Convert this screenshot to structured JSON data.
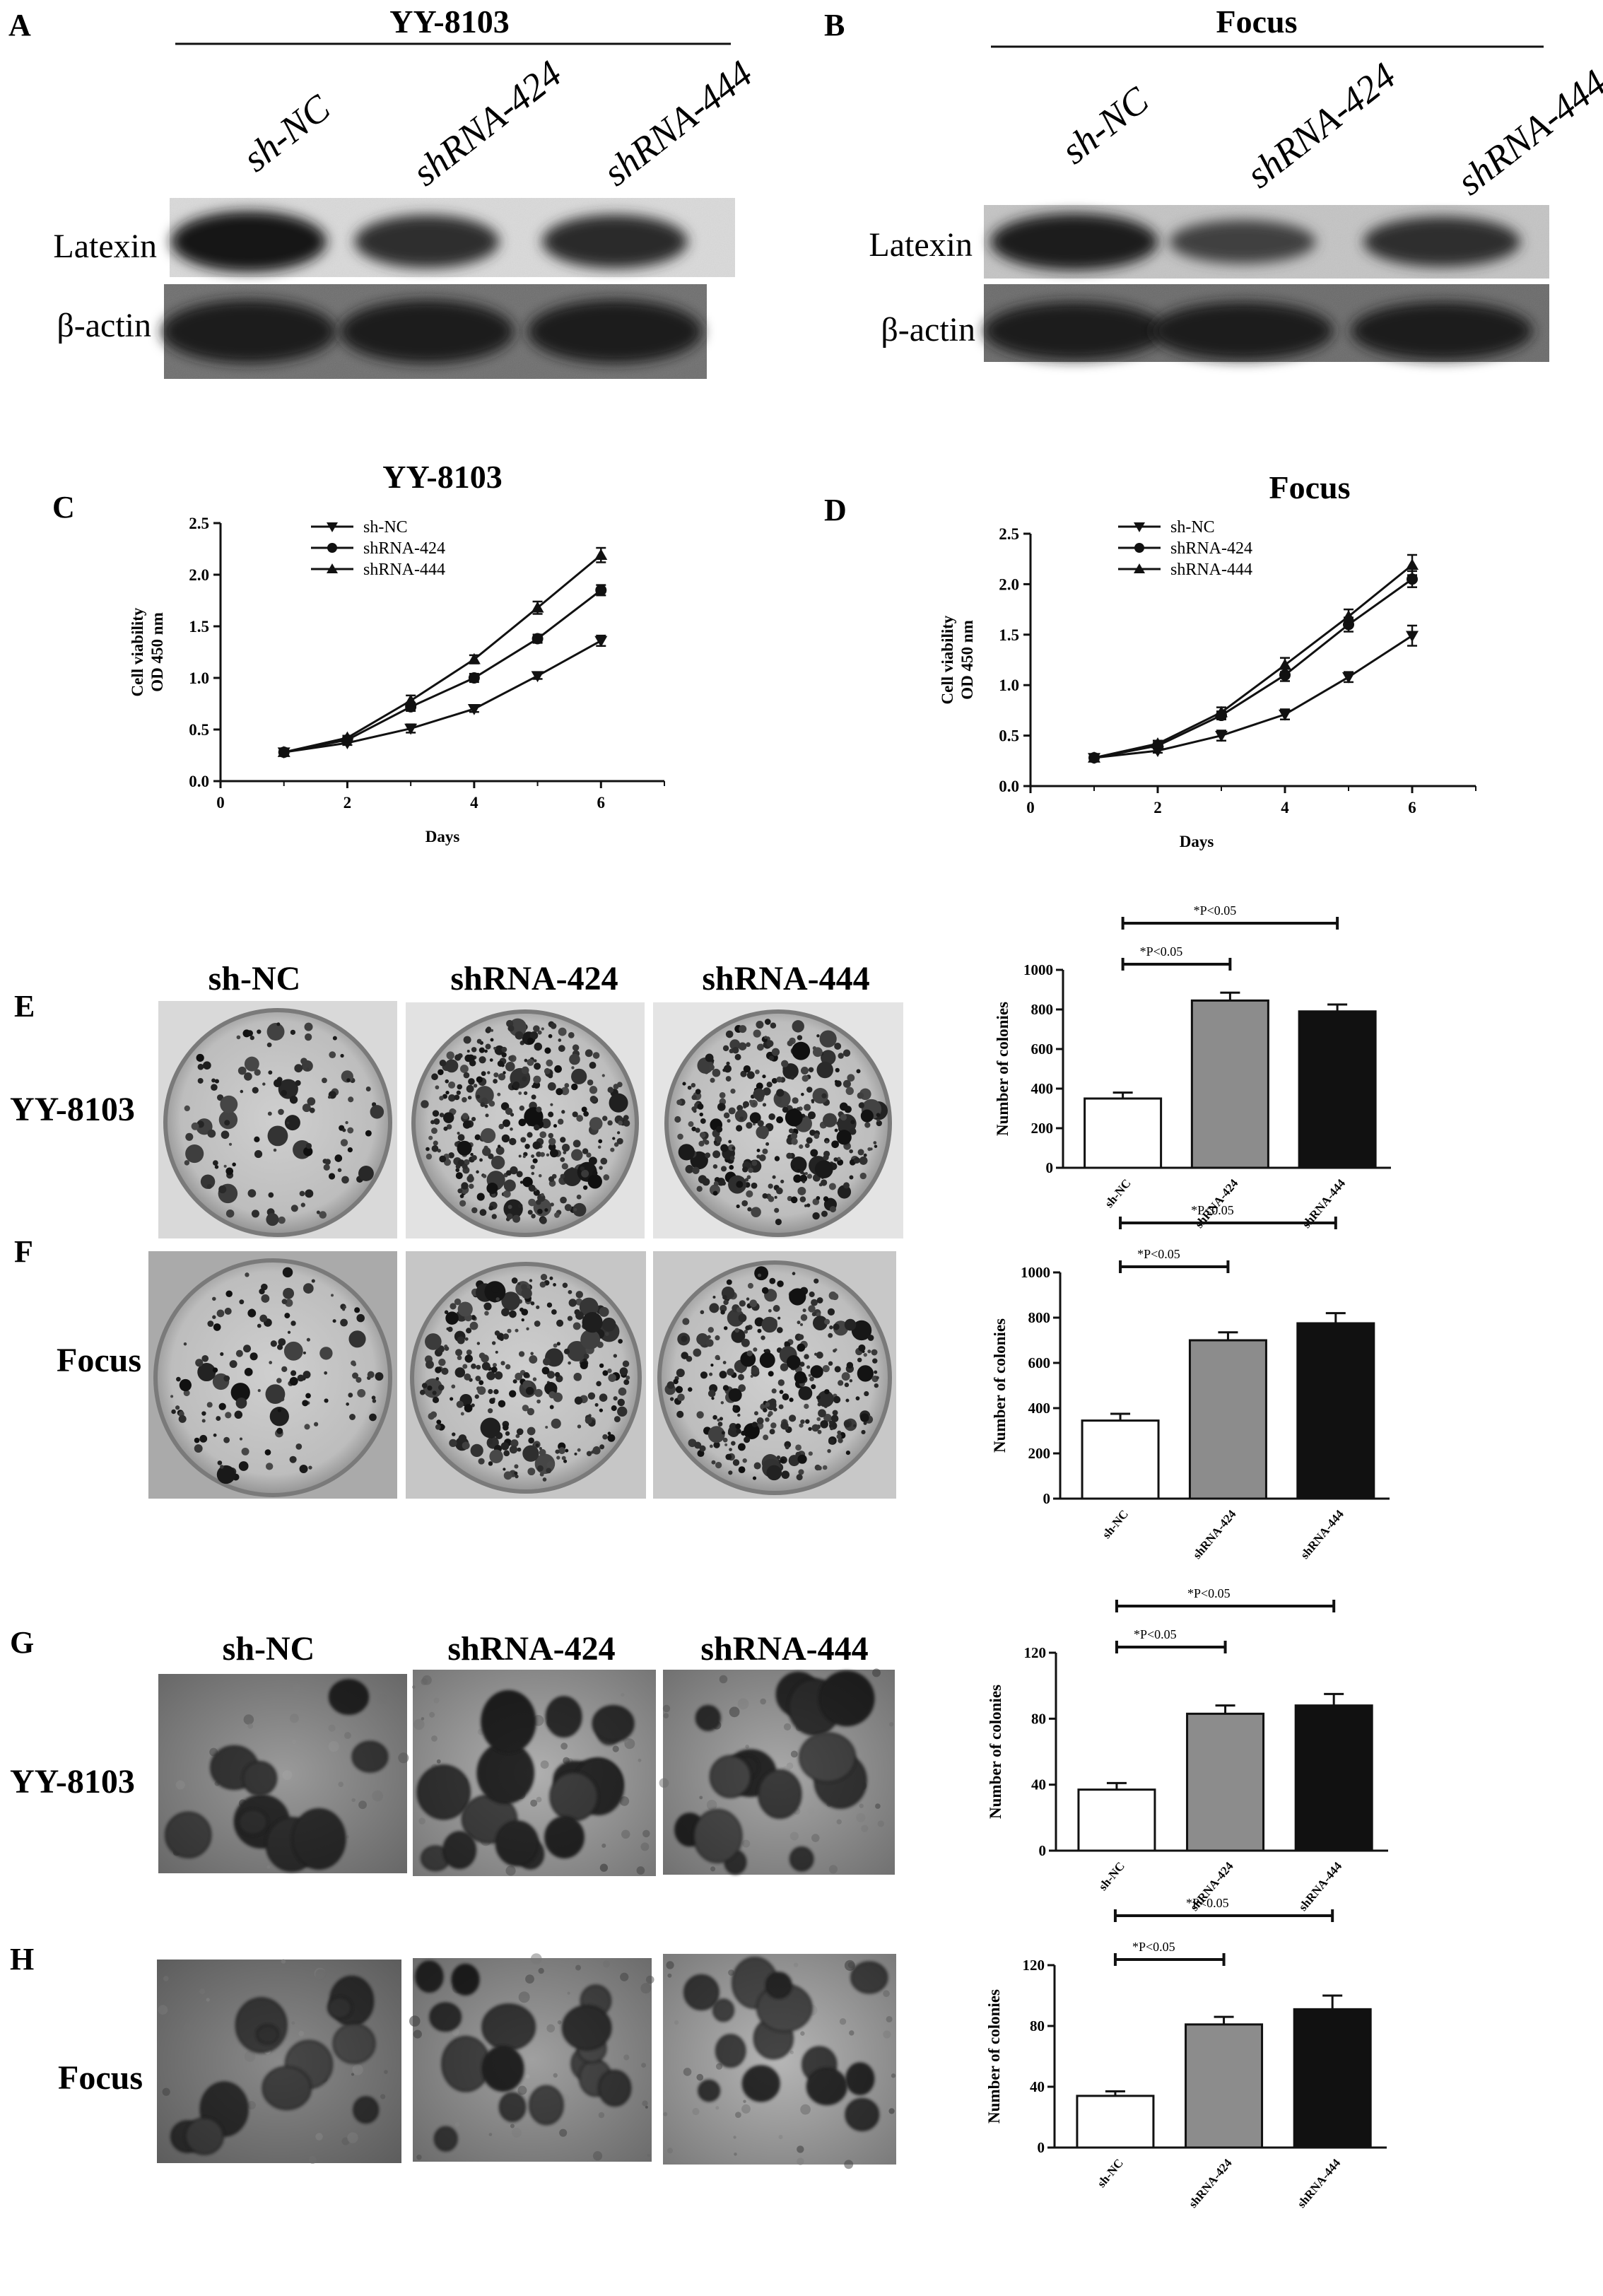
{
  "colors": {
    "background": "#ffffff",
    "ink": "#111111",
    "bar_sh_nc": "#ffffff",
    "bar_shrna_424": "#8c8c8c",
    "bar_shrna_444": "#111111"
  },
  "panels": {
    "A": {
      "letter": "A",
      "title": "YY-8103",
      "lanes": [
        "sh-NC",
        "shRNA-424",
        "shRNA-444"
      ],
      "rows": [
        "Latexin",
        "β-actin"
      ],
      "band_intensity": {
        "Latexin": [
          1.0,
          0.72,
          0.74
        ],
        "β-actin": [
          0.95,
          0.95,
          0.95
        ]
      }
    },
    "B": {
      "letter": "B",
      "title": "Focus",
      "lanes": [
        "sh-NC",
        "shRNA-424",
        "shRNA-444"
      ],
      "rows": [
        "Latexin",
        "β-actin"
      ],
      "band_intensity": {
        "Latexin": [
          0.95,
          0.45,
          0.7
        ],
        "β-actin": [
          0.95,
          0.95,
          0.95
        ]
      }
    },
    "C": {
      "letter": "C"
    },
    "D": {
      "letter": "D"
    },
    "E": {
      "letter": "E",
      "row_label": "YY-8103",
      "headers": [
        "sh-NC",
        "shRNA-424",
        "shRNA-444"
      ],
      "image_description": "colony formation plate images"
    },
    "F": {
      "letter": "F",
      "row_label": "Focus"
    },
    "G": {
      "letter": "G",
      "row_label": "YY-8103",
      "headers": [
        "sh-NC",
        "shRNA-424",
        "shRNA-444"
      ],
      "image_description": "soft agar colony micrographs"
    },
    "H": {
      "letter": "H",
      "row_label": "Focus"
    }
  },
  "chart_data": [
    {
      "panel": "C",
      "type": "line",
      "title": "YY-8103",
      "xlabel": "Days",
      "ylabel": "Cell viability\nOD 450 nm",
      "x": [
        1,
        2,
        3,
        4,
        5,
        6
      ],
      "xlim": [
        0,
        7
      ],
      "ylim": [
        0,
        2.5
      ],
      "xticks": [
        "0",
        "2",
        "4",
        "6"
      ],
      "yticks": [
        "0.0",
        "0.5",
        "1.0",
        "1.5",
        "2.0",
        "2.5"
      ],
      "legend_position": "top-left",
      "series": [
        {
          "name": "sh-NC",
          "marker": "triangle-down",
          "values": [
            0.28,
            0.37,
            0.51,
            0.7,
            1.02,
            1.36
          ],
          "errors": [
            0.02,
            0.02,
            0.04,
            0.03,
            0.03,
            0.05
          ]
        },
        {
          "name": "shRNA-424",
          "marker": "circle",
          "values": [
            0.28,
            0.4,
            0.72,
            1.0,
            1.38,
            1.85
          ],
          "errors": [
            0.02,
            0.02,
            0.04,
            0.04,
            0.04,
            0.05
          ]
        },
        {
          "name": "shRNA-444",
          "marker": "triangle-up",
          "values": [
            0.28,
            0.42,
            0.78,
            1.18,
            1.68,
            2.19
          ],
          "errors": [
            0.02,
            0.02,
            0.05,
            0.04,
            0.06,
            0.07
          ]
        }
      ]
    },
    {
      "panel": "D",
      "type": "line",
      "title": "Focus",
      "xlabel": "Days",
      "ylabel": "Cell viability\nOD 450 nm",
      "x": [
        1,
        2,
        3,
        4,
        5,
        6
      ],
      "xlim": [
        0,
        7
      ],
      "ylim": [
        0,
        2.5
      ],
      "xticks": [
        "0",
        "2",
        "4",
        "6"
      ],
      "yticks": [
        "0.0",
        "0.5",
        "1.0",
        "1.5",
        "2.0",
        "2.5"
      ],
      "legend_position": "top-left",
      "series": [
        {
          "name": "sh-NC",
          "marker": "triangle-down",
          "values": [
            0.28,
            0.35,
            0.5,
            0.71,
            1.08,
            1.49
          ],
          "errors": [
            0.02,
            0.02,
            0.05,
            0.05,
            0.05,
            0.1
          ]
        },
        {
          "name": "shRNA-424",
          "marker": "circle",
          "values": [
            0.28,
            0.4,
            0.7,
            1.1,
            1.6,
            2.05
          ],
          "errors": [
            0.02,
            0.03,
            0.04,
            0.06,
            0.07,
            0.08
          ]
        },
        {
          "name": "shRNA-444",
          "marker": "triangle-up",
          "values": [
            0.28,
            0.42,
            0.73,
            1.2,
            1.68,
            2.19
          ],
          "errors": [
            0.02,
            0.03,
            0.05,
            0.07,
            0.07,
            0.1
          ]
        }
      ]
    },
    {
      "panel": "E",
      "type": "bar",
      "categories": [
        "sh-NC",
        "shRNA-424",
        "shRNA-444"
      ],
      "values": [
        350,
        845,
        790
      ],
      "errors": [
        30,
        40,
        35
      ],
      "ylabel": "Number of colonies",
      "ylim": [
        0,
        1000
      ],
      "yticks": [
        "0",
        "200",
        "400",
        "600",
        "800",
        "1000"
      ],
      "annotations": [
        {
          "text": "*P<0.05",
          "from": "sh-NC",
          "to": "shRNA-424",
          "level": 0
        },
        {
          "text": "*P<0.05",
          "from": "sh-NC",
          "to": "shRNA-444",
          "level": 1
        }
      ]
    },
    {
      "panel": "F",
      "type": "bar",
      "categories": [
        "sh-NC",
        "shRNA-424",
        "shRNA-444"
      ],
      "values": [
        345,
        700,
        775
      ],
      "errors": [
        30,
        35,
        45
      ],
      "ylabel": "Number of colonies",
      "ylim": [
        0,
        1000
      ],
      "yticks": [
        "0",
        "200",
        "400",
        "600",
        "800",
        "1000"
      ],
      "annotations": [
        {
          "text": "*P<0.05",
          "from": "sh-NC",
          "to": "shRNA-424",
          "level": 0
        },
        {
          "text": "*P<0.05",
          "from": "sh-NC",
          "to": "shRNA-444",
          "level": 1
        }
      ]
    },
    {
      "panel": "G",
      "type": "bar",
      "categories": [
        "sh-NC",
        "shRNA-424",
        "shRNA-444"
      ],
      "values": [
        37,
        83,
        88
      ],
      "errors": [
        4,
        5,
        7
      ],
      "ylabel": "Number of colonies",
      "ylim": [
        0,
        120
      ],
      "yticks": [
        "0",
        "40",
        "80",
        "120"
      ],
      "annotations": [
        {
          "text": "*P<0.05",
          "from": "sh-NC",
          "to": "shRNA-424",
          "level": 0
        },
        {
          "text": "*P<0.05",
          "from": "sh-NC",
          "to": "shRNA-444",
          "level": 1
        }
      ]
    },
    {
      "panel": "H",
      "type": "bar",
      "categories": [
        "sh-NC",
        "shRNA-424",
        "shRNA-444"
      ],
      "values": [
        34,
        81,
        91
      ],
      "errors": [
        3,
        5,
        9
      ],
      "ylabel": "Number of colonies",
      "ylim": [
        0,
        120
      ],
      "yticks": [
        "0",
        "40",
        "80",
        "120"
      ],
      "annotations": [
        {
          "text": "*P<0.05",
          "from": "sh-NC",
          "to": "shRNA-424",
          "level": 0
        },
        {
          "text": "*P<0.05",
          "from": "sh-NC",
          "to": "shRNA-444",
          "level": 1
        }
      ]
    }
  ]
}
